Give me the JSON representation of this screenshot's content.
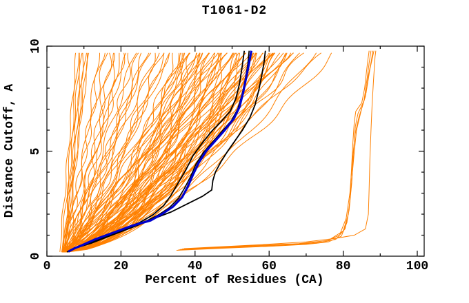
{
  "title": "T1061-D2",
  "axes": {
    "x": {
      "label": "Percent of Residues (CA)",
      "min": 0,
      "max": 100,
      "major_ticks": [
        0,
        20,
        40,
        60,
        80,
        100
      ],
      "minor_ticks": [
        10,
        30,
        50,
        70,
        90
      ]
    },
    "y": {
      "label": "Distance Cutoff, A",
      "min": 0,
      "max": 10,
      "major_ticks": [
        0,
        5,
        10
      ],
      "minor_ticks": [
        1,
        2,
        3,
        4,
        6,
        7,
        8,
        9
      ]
    }
  },
  "colors": {
    "background": "#ffffff",
    "axis": "#000000",
    "ensemble": "#ff8000",
    "highlight": "#0000cd",
    "reference": "#000000"
  },
  "chart_data": {
    "type": "line",
    "title": "T1061-D2",
    "xlabel": "Percent of Residues (CA)",
    "ylabel": "Distance Cutoff, A",
    "xlim": [
      0,
      102
    ],
    "ylim": [
      0,
      10
    ],
    "grid": false,
    "legend": "none",
    "named_series": [
      {
        "name": "highlight-blue",
        "color": "#0000cd",
        "width": 3.2,
        "points": [
          [
            5.8,
            0.22
          ],
          [
            7.5,
            0.38
          ],
          [
            9.5,
            0.52
          ],
          [
            13,
            0.8
          ],
          [
            18,
            1.12
          ],
          [
            23,
            1.45
          ],
          [
            28,
            1.7
          ],
          [
            31,
            2.0
          ],
          [
            34,
            2.35
          ],
          [
            36.5,
            2.8
          ],
          [
            38,
            3.3
          ],
          [
            39.5,
            3.9
          ],
          [
            41,
            4.45
          ],
          [
            43,
            5.0
          ],
          [
            45.5,
            5.5
          ],
          [
            48,
            6.0
          ],
          [
            50.5,
            6.55
          ],
          [
            52,
            7.1
          ],
          [
            53,
            7.8
          ],
          [
            53.8,
            8.5
          ],
          [
            54.6,
            9.2
          ],
          [
            55.2,
            9.78
          ]
        ]
      },
      {
        "name": "black-left",
        "color": "#000000",
        "width": 1.8,
        "points": [
          [
            5.4,
            0.2
          ],
          [
            7,
            0.35
          ],
          [
            10,
            0.55
          ],
          [
            15,
            0.9
          ],
          [
            20,
            1.25
          ],
          [
            25,
            1.6
          ],
          [
            28.5,
            1.95
          ],
          [
            31.5,
            2.4
          ],
          [
            33.5,
            2.9
          ],
          [
            35.5,
            3.5
          ],
          [
            37.5,
            4.1
          ],
          [
            39.5,
            4.8
          ],
          [
            42,
            5.4
          ],
          [
            44.5,
            5.95
          ],
          [
            47,
            6.4
          ],
          [
            49.5,
            6.9
          ],
          [
            51,
            7.5
          ],
          [
            52,
            8.2
          ],
          [
            52.7,
            9.0
          ],
          [
            53.3,
            9.78
          ]
        ]
      },
      {
        "name": "black-mid",
        "color": "#000000",
        "width": 1.6,
        "points": [
          [
            5.6,
            0.21
          ],
          [
            7.2,
            0.36
          ],
          [
            11,
            0.6
          ],
          [
            16,
            0.95
          ],
          [
            21.5,
            1.3
          ],
          [
            26.5,
            1.65
          ],
          [
            30,
            1.95
          ],
          [
            33,
            2.3
          ],
          [
            35.5,
            2.75
          ],
          [
            37.2,
            3.25
          ],
          [
            38.8,
            3.8
          ],
          [
            40.3,
            4.4
          ],
          [
            42.3,
            4.95
          ],
          [
            44.8,
            5.45
          ],
          [
            47.3,
            5.95
          ],
          [
            49.8,
            6.45
          ],
          [
            51.5,
            7.0
          ],
          [
            52.7,
            7.7
          ],
          [
            53.6,
            8.45
          ],
          [
            54.2,
            9.1
          ],
          [
            54.6,
            9.78
          ]
        ]
      },
      {
        "name": "black-right",
        "color": "#000000",
        "width": 1.8,
        "points": [
          [
            6,
            0.22
          ],
          [
            8,
            0.4
          ],
          [
            12,
            0.62
          ],
          [
            17.5,
            1.0
          ],
          [
            23.5,
            1.4
          ],
          [
            29,
            1.8
          ],
          [
            33.5,
            2.1
          ],
          [
            38,
            2.5
          ],
          [
            42,
            2.85
          ],
          [
            44.5,
            3.15
          ],
          [
            44.8,
            3.6
          ],
          [
            45.5,
            4.0
          ],
          [
            47,
            4.5
          ],
          [
            48.8,
            5.0
          ],
          [
            50.8,
            5.5
          ],
          [
            52.8,
            6.0
          ],
          [
            54.8,
            6.6
          ],
          [
            56.2,
            7.2
          ],
          [
            57.2,
            7.9
          ],
          [
            58,
            8.6
          ],
          [
            58.6,
            9.2
          ],
          [
            59,
            9.78
          ]
        ]
      }
    ],
    "right_bundle": [
      [
        [
          35,
          0.28
        ],
        [
          48,
          0.38
        ],
        [
          60,
          0.47
        ],
        [
          70,
          0.56
        ],
        [
          76,
          0.68
        ],
        [
          79.5,
          0.95
        ],
        [
          81,
          1.6
        ],
        [
          81.8,
          2.6
        ],
        [
          82.2,
          4.0
        ],
        [
          82.6,
          5.4
        ],
        [
          83,
          6.4
        ],
        [
          83.4,
          6.9
        ],
        [
          85,
          7.3
        ],
        [
          85.8,
          8.0
        ],
        [
          86.3,
          8.8
        ],
        [
          86.7,
          9.4
        ],
        [
          87,
          9.78
        ]
      ],
      [
        [
          35.5,
          0.3
        ],
        [
          50,
          0.42
        ],
        [
          63,
          0.52
        ],
        [
          73,
          0.62
        ],
        [
          78,
          0.8
        ],
        [
          80.5,
          1.3
        ],
        [
          81.6,
          2.2
        ],
        [
          82.3,
          3.5
        ],
        [
          82.8,
          5.0
        ],
        [
          83.3,
          6.2
        ],
        [
          84,
          6.8
        ],
        [
          85.6,
          7.4
        ],
        [
          86.4,
          8.4
        ],
        [
          87,
          9.2
        ],
        [
          87.5,
          9.78
        ]
      ],
      [
        [
          36,
          0.32
        ],
        [
          52,
          0.45
        ],
        [
          66,
          0.56
        ],
        [
          75,
          0.68
        ],
        [
          79,
          1.0
        ],
        [
          80.8,
          1.8
        ],
        [
          81.8,
          3.0
        ],
        [
          82.5,
          4.6
        ],
        [
          83.2,
          5.8
        ],
        [
          84.2,
          6.6
        ],
        [
          86,
          7.6
        ],
        [
          86.8,
          8.6
        ],
        [
          87.6,
          9.3
        ],
        [
          88,
          9.78
        ]
      ],
      [
        [
          36.5,
          0.34
        ],
        [
          55,
          0.5
        ],
        [
          68,
          0.6
        ],
        [
          76,
          0.75
        ],
        [
          80,
          1.2
        ],
        [
          81.4,
          2.0
        ],
        [
          82.1,
          3.2
        ],
        [
          82.9,
          4.8
        ],
        [
          83.6,
          6.0
        ],
        [
          84.8,
          6.9
        ],
        [
          86.2,
          7.8
        ],
        [
          87.2,
          8.9
        ],
        [
          88.3,
          9.78
        ]
      ],
      [
        [
          37,
          0.36
        ],
        [
          58,
          0.55
        ],
        [
          70,
          0.68
        ],
        [
          78,
          0.85
        ],
        [
          83,
          1.0
        ],
        [
          86,
          1.3
        ],
        [
          86.8,
          2.0
        ],
        [
          87,
          3.2
        ],
        [
          87.2,
          4.6
        ],
        [
          87.5,
          6.0
        ],
        [
          87.8,
          7.2
        ],
        [
          88.2,
          8.4
        ],
        [
          88.6,
          9.5
        ],
        [
          88.8,
          9.78
        ]
      ]
    ],
    "ensemble_curves": [
      [
        3.5,
        8,
        1.0,
        0.25,
        2.5,
        0
      ],
      [
        4,
        8.5,
        0.95,
        0.3,
        2.1,
        1
      ],
      [
        4.5,
        9,
        1.05,
        0.25,
        2.8,
        2
      ],
      [
        5,
        9.5,
        1.0,
        0.3,
        2.3,
        3
      ],
      [
        4.2,
        10,
        0.9,
        0.35,
        2.6,
        4
      ],
      [
        4.8,
        10.5,
        1.0,
        0.3,
        2.2,
        5
      ],
      [
        5.2,
        11,
        0.95,
        0.25,
        2.9,
        0.5
      ],
      [
        4.6,
        11.5,
        1.0,
        0.3,
        2.4,
        1.5
      ],
      [
        4,
        14,
        0.72,
        0.5,
        2.2,
        0
      ],
      [
        4.5,
        15,
        0.88,
        0.8,
        2.6,
        1.7
      ],
      [
        5,
        16,
        1.0,
        0.6,
        3.0,
        3.4
      ],
      [
        5.5,
        17,
        0.62,
        1.0,
        2.4,
        5.1
      ],
      [
        6,
        18,
        0.93,
        0.7,
        2.8,
        0.5
      ],
      [
        4.2,
        19,
        0.78,
        0.9,
        2.2,
        2.2
      ],
      [
        4.8,
        20,
        0.72,
        0.5,
        2.6,
        3.9
      ],
      [
        5.4,
        21,
        0.88,
        0.8,
        3.0,
        5.6
      ],
      [
        4,
        22,
        1.0,
        0.6,
        2.4,
        1.0
      ],
      [
        4.5,
        23,
        0.62,
        1.0,
        2.8,
        2.7
      ],
      [
        5,
        24,
        0.93,
        0.7,
        2.2,
        4.4
      ],
      [
        5.5,
        25,
        0.78,
        0.9,
        2.6,
        6.1
      ],
      [
        6,
        26,
        0.72,
        0.5,
        3.0,
        1.5
      ],
      [
        4.2,
        27,
        0.88,
        0.8,
        2.4,
        3.2
      ],
      [
        4.8,
        28,
        1.0,
        0.6,
        2.8,
        4.9
      ],
      [
        5.4,
        29,
        0.62,
        1.0,
        2.2,
        0.3
      ],
      [
        4,
        30,
        0.93,
        0.7,
        2.6,
        2.0
      ],
      [
        4.5,
        31,
        0.78,
        0.9,
        3.0,
        3.7
      ],
      [
        5,
        32,
        0.72,
        0.5,
        2.4,
        5.4
      ],
      [
        5.5,
        33,
        0.88,
        0.8,
        2.8,
        0.8
      ],
      [
        6,
        34,
        1.0,
        0.6,
        2.2,
        2.5
      ],
      [
        4.2,
        35,
        0.62,
        1.0,
        2.6,
        4.2
      ],
      [
        4,
        36,
        0.5,
        0.6,
        2.3,
        0
      ],
      [
        4.6,
        36.5,
        0.68,
        1.0,
        2.7,
        1.9
      ],
      [
        5.2,
        37,
        0.82,
        0.7,
        3.1,
        3.8
      ],
      [
        5.8,
        37.5,
        0.56,
        1.2,
        2.5,
        5.7
      ],
      [
        4.3,
        38,
        0.74,
        0.8,
        2.9,
        1.3
      ],
      [
        4.9,
        38.5,
        0.62,
        0.5,
        2.3,
        3.2
      ],
      [
        4,
        39,
        0.92,
        0.6,
        2.7,
        5.1
      ],
      [
        4.6,
        39.5,
        0.52,
        1.0,
        3.1,
        0.7
      ],
      [
        5.2,
        40,
        0.5,
        0.7,
        2.5,
        2.6
      ],
      [
        5.8,
        40.5,
        0.68,
        1.2,
        2.9,
        4.5
      ],
      [
        4.3,
        41,
        0.82,
        0.8,
        2.3,
        0.1
      ],
      [
        4.9,
        41.5,
        0.56,
        0.5,
        2.7,
        2.0
      ],
      [
        4,
        42,
        0.74,
        0.6,
        3.1,
        3.9
      ],
      [
        4.6,
        42.5,
        0.62,
        1.0,
        2.5,
        5.8
      ],
      [
        5.2,
        43,
        0.92,
        0.7,
        2.9,
        1.4
      ],
      [
        5.8,
        43.5,
        0.52,
        1.2,
        2.3,
        3.3
      ],
      [
        4.3,
        44,
        0.5,
        0.8,
        2.7,
        5.2
      ],
      [
        4.9,
        44.5,
        0.68,
        0.5,
        3.1,
        0.8
      ],
      [
        4,
        45,
        0.82,
        0.6,
        2.5,
        2.7
      ],
      [
        4.6,
        45.5,
        0.56,
        1.0,
        2.9,
        4.6
      ],
      [
        5.2,
        46,
        0.74,
        0.7,
        2.3,
        0.2
      ],
      [
        5.8,
        46.5,
        0.62,
        1.2,
        2.7,
        2.1
      ],
      [
        4.3,
        47,
        0.92,
        0.8,
        3.1,
        4.0
      ],
      [
        4.9,
        47.5,
        0.52,
        0.5,
        2.5,
        5.9
      ],
      [
        4,
        48,
        0.5,
        0.6,
        2.9,
        1.5
      ],
      [
        4.6,
        48.5,
        0.68,
        1.0,
        2.3,
        3.4
      ],
      [
        5.2,
        49,
        0.82,
        0.7,
        2.7,
        5.3
      ],
      [
        5.8,
        49.5,
        0.56,
        1.2,
        3.1,
        0.9
      ],
      [
        4.3,
        50,
        0.74,
        0.8,
        2.5,
        2.8
      ],
      [
        4.9,
        50.5,
        0.62,
        0.5,
        2.9,
        4.7
      ],
      [
        4,
        51,
        0.92,
        0.6,
        2.3,
        0.3
      ],
      [
        4.6,
        51.5,
        0.52,
        1.0,
        2.7,
        2.2
      ],
      [
        5.2,
        52,
        0.5,
        0.7,
        3.1,
        4.1
      ],
      [
        5.8,
        52.5,
        0.68,
        1.2,
        2.5,
        6.0
      ],
      [
        4.3,
        53,
        0.82,
        0.8,
        2.9,
        1.6
      ],
      [
        4.9,
        53.5,
        0.56,
        0.5,
        2.3,
        3.5
      ],
      [
        4,
        54,
        0.74,
        0.6,
        2.7,
        5.4
      ],
      [
        4.6,
        54.5,
        0.62,
        1.0,
        3.1,
        1.0
      ],
      [
        5.2,
        55,
        0.92,
        0.7,
        2.5,
        2.9
      ],
      [
        5.8,
        55.5,
        0.52,
        1.2,
        2.9,
        4.8
      ],
      [
        4.3,
        56,
        0.5,
        0.8,
        2.3,
        0.4
      ],
      [
        4.9,
        56.3,
        0.68,
        0.5,
        2.7,
        2.3
      ],
      [
        4,
        56.6,
        0.82,
        0.6,
        3.1,
        4.2
      ],
      [
        4.6,
        56.9,
        0.56,
        1.0,
        2.5,
        6.1
      ],
      [
        5.2,
        57,
        0.74,
        0.7,
        2.9,
        1.7
      ],
      [
        4.2,
        57.5,
        0.55,
        0.7,
        2.4,
        0
      ],
      [
        4.8,
        58,
        0.72,
        1.1,
        2.8,
        2.1
      ],
      [
        5.4,
        58.5,
        0.6,
        0.8,
        2.2,
        4.2
      ],
      [
        6,
        59,
        0.85,
        0.6,
        3.0,
        6.0
      ],
      [
        4.5,
        59.5,
        0.65,
        0.9,
        2.6,
        1.8
      ],
      [
        4.2,
        60,
        0.55,
        0.7,
        2.4,
        3.9
      ],
      [
        4.8,
        60.5,
        0.72,
        1.1,
        2.8,
        5.7
      ],
      [
        5.4,
        61,
        0.6,
        0.8,
        2.2,
        1.2
      ],
      [
        6,
        61.5,
        0.85,
        0.6,
        3.0,
        3.3
      ],
      [
        4.5,
        62,
        0.65,
        0.9,
        2.6,
        5.4
      ],
      [
        4.2,
        62.5,
        0.55,
        0.7,
        2.4,
        0.9
      ],
      [
        4.8,
        63,
        0.72,
        1.1,
        2.8,
        3.0
      ],
      [
        5.4,
        63.5,
        0.6,
        0.8,
        2.2,
        5.1
      ],
      [
        6,
        64,
        0.85,
        0.6,
        3.0,
        0.6
      ],
      [
        4.5,
        64.5,
        0.65,
        0.9,
        2.6,
        2.7
      ],
      [
        4.2,
        65,
        0.55,
        0.7,
        2.4,
        4.8
      ],
      [
        4.8,
        65.5,
        0.72,
        1.1,
        2.8,
        0.3
      ],
      [
        5.4,
        66,
        0.6,
        0.8,
        2.2,
        2.4
      ],
      [
        6,
        66.5,
        0.85,
        0.6,
        3.0,
        4.5
      ],
      [
        4.5,
        67,
        0.65,
        0.9,
        2.6,
        0.0
      ],
      [
        4.2,
        68.5,
        0.55,
        0.7,
        2.4,
        2.1
      ],
      [
        4.8,
        70,
        0.72,
        1.1,
        2.8,
        4.2
      ],
      [
        5.4,
        72.5,
        0.6,
        0.8,
        2.2,
        6.0
      ],
      [
        6,
        75,
        0.85,
        0.6,
        3.0,
        1.8
      ],
      [
        4.5,
        78,
        0.65,
        0.9,
        2.6,
        3.9
      ]
    ]
  }
}
